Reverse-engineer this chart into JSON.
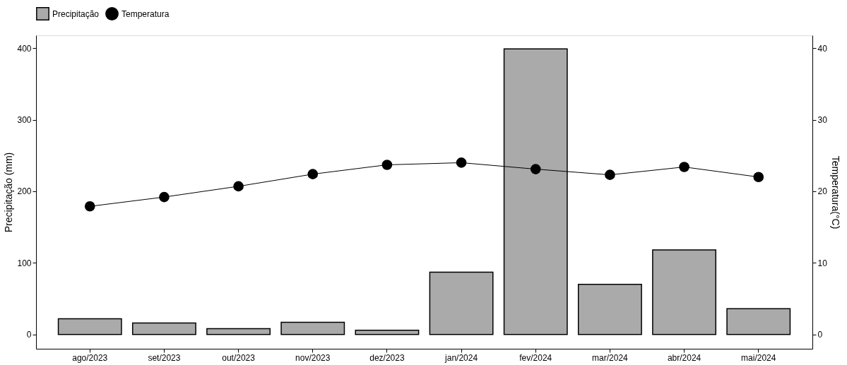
{
  "chart_data": {
    "type": "bar",
    "categories": [
      "ago/2023",
      "set/2023",
      "out/2023",
      "nov/2023",
      "dez/2023",
      "jan/2024",
      "fev/2024",
      "mar/2024",
      "abr/2024",
      "mai/2024"
    ],
    "ylabel": "Precipitação (mm)",
    "y2label": "Temperatura(°C)",
    "ylim": [
      -20,
      418
    ],
    "yticks": [
      0,
      100,
      200,
      300,
      400
    ],
    "y2lim": [
      -2,
      41.8
    ],
    "y2ticks": [
      0,
      10,
      20,
      30,
      40
    ],
    "series": [
      {
        "name": "Precipitação",
        "color": "#aaaaaa",
        "values": [
          22,
          16,
          8,
          17,
          6,
          87,
          399,
          70,
          118,
          36
        ]
      },
      {
        "name": "Temperatura",
        "type": "line",
        "axis": "y2",
        "color": "#000000",
        "values": [
          17.9,
          19.2,
          20.7,
          22.4,
          23.7,
          24.0,
          23.1,
          22.3,
          23.4,
          22.0
        ]
      }
    ],
    "marker": "circle",
    "line_style": "solid",
    "legend": "top",
    "grid": false
  }
}
